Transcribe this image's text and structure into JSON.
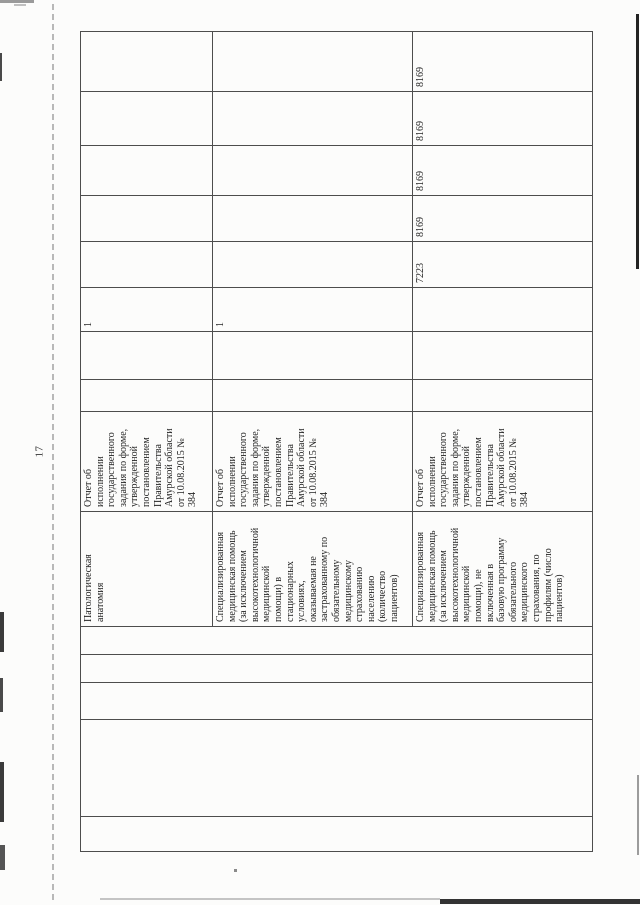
{
  "page": {
    "number": "17"
  },
  "table": {
    "rows": [
      {
        "cells": [
          "",
          "",
          "",
          "",
          "",
          "Патологическая\nанатомия",
          "Отчет об\nисполнении\nгосударственного\nзадания по форме,\nутвержденной\nпостановлением\nПравительства\nАмурской области\nот 10.08.2015 №\n384",
          "",
          "",
          "1",
          "",
          "",
          "",
          "",
          ""
        ]
      },
      {
        "cells": [
          "Специализированная\nмедицинская помощь\n(за исключением\nвысокотехнологичной\nмедицинской\nпомощи) в\nстационарных\nусловиях,\nоказываемая не\nзастрахованному по\nобязательному\nмедицинскому\nстрахованию\nнаселению\n(количество\nпациентов)",
          "Отчет об\nисполнении\nгосударственного\nзадания по форме,\nутвержденной\nпостановлением\nПравительства\nАмурской области\nот 10.08.2015 №\n384",
          "",
          "",
          "1",
          "",
          "",
          "",
          "",
          ""
        ]
      },
      {
        "cells": [
          "Специализированная\nмедицинская помощь\n(за исключением\nвысокотехнологичной\nмедицинской\nпомощи), не\nвключенная в\nбазовую программу\nобязательного\nмедицинского\nстрахования, по\nпрофилям (число\nпациентов)",
          "Отчет об\nисполнении\nгосударственного\nзадания по форме,\nутвержденной\nпостановлением\nПравительства\nАмурской области\nот 10.08.2015 №\n384",
          "",
          "",
          "",
          "7223",
          "8169",
          "8169",
          "8169",
          "8169"
        ]
      }
    ]
  }
}
